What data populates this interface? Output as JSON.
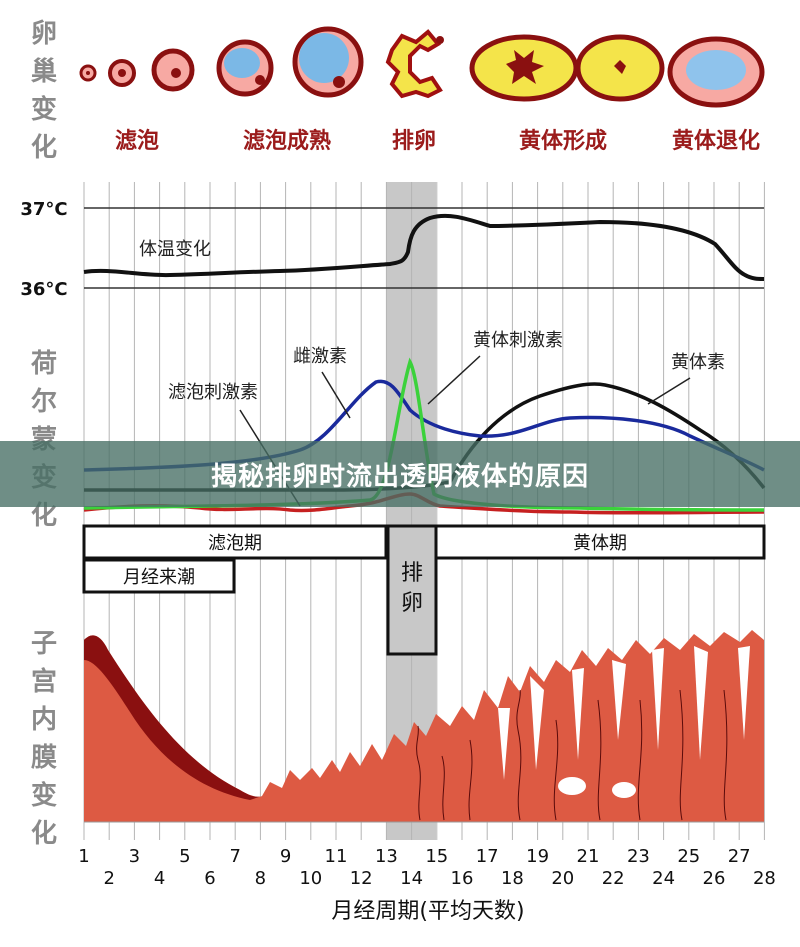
{
  "side_labels": {
    "ovary": [
      "卵",
      "巢",
      "变",
      "化"
    ],
    "hormone": [
      "荷",
      "尔",
      "蒙",
      "变",
      "化"
    ],
    "endometrium": [
      "子",
      "宫",
      "内",
      "膜",
      "变",
      "化"
    ]
  },
  "ovary_stages": [
    "滤泡",
    "滤泡成熟",
    "排卵",
    "黄体形成",
    "黄体退化"
  ],
  "temperature": {
    "high_label": "37°C",
    "low_label": "36°C",
    "curve_label": "体温变化"
  },
  "hormones": {
    "estrogen": "雌激素",
    "fsh": "滤泡刺激素",
    "lh": "黄体刺激素",
    "progesterone": "黄体素"
  },
  "phases": {
    "follicular": "滤泡期",
    "menstruation": "月经来潮",
    "ovulation": "排卵",
    "luteal": "黄体期"
  },
  "days_top": [
    "1",
    "3",
    "5",
    "7",
    "9",
    "11",
    "13",
    "15",
    "17",
    "19",
    "21",
    "23",
    "25",
    "27"
  ],
  "days_bottom": [
    "2",
    "4",
    "6",
    "8",
    "10",
    "12",
    "14",
    "16",
    "18",
    "20",
    "22",
    "24",
    "26",
    "28"
  ],
  "x_axis_title": "月经周期(平均天数)",
  "banner": "揭秘排卵时流出透明液体的原因",
  "colors": {
    "estrogen": "#1a2a9c",
    "fsh": "#c62020",
    "lh": "#3bd23b",
    "progesterone": "#111111",
    "temperature": "#111111",
    "endometrium": "#dd5a43",
    "ovulation_band": "#c8c8c8"
  }
}
